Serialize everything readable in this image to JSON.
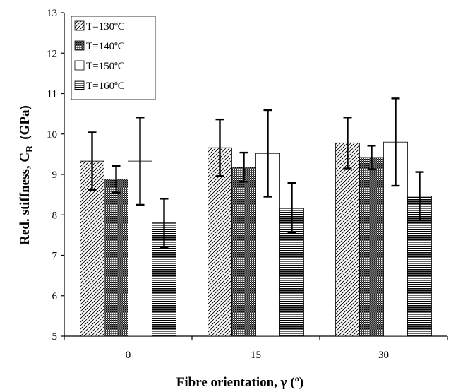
{
  "chart_data": {
    "type": "bar",
    "categories": [
      "0",
      "15",
      "30"
    ],
    "xlabel": "Fibre orientation, γ  (º)",
    "ylabel": "Red. stiffness, C_R  (GPa)",
    "ylabel_main": "Red. stiffness, C",
    "ylabel_sub": "R",
    "ylabel_unit": "(GPa)",
    "ylim": [
      5,
      13
    ],
    "yticks": [
      "5",
      "6",
      "7",
      "8",
      "9",
      "10",
      "11",
      "12",
      "13"
    ],
    "grid": false,
    "legend_position": "top-left",
    "series": [
      {
        "name": "T=130ºC",
        "pattern": "diagonal-hatch",
        "values": [
          9.33,
          9.66,
          9.78
        ],
        "error": [
          0.71,
          0.7,
          0.63
        ]
      },
      {
        "name": "T=140ºC",
        "pattern": "crosshatch-dark",
        "values": [
          8.88,
          9.18,
          9.42
        ],
        "error": [
          0.33,
          0.36,
          0.29
        ]
      },
      {
        "name": "T=150ºC",
        "pattern": "solid-white",
        "values": [
          9.33,
          9.52,
          9.8
        ],
        "error": [
          1.08,
          1.07,
          1.08
        ]
      },
      {
        "name": "T=160ºC",
        "pattern": "horizontal-lines",
        "values": [
          7.8,
          8.17,
          8.46
        ],
        "error": [
          0.6,
          0.62,
          0.6
        ]
      }
    ]
  }
}
